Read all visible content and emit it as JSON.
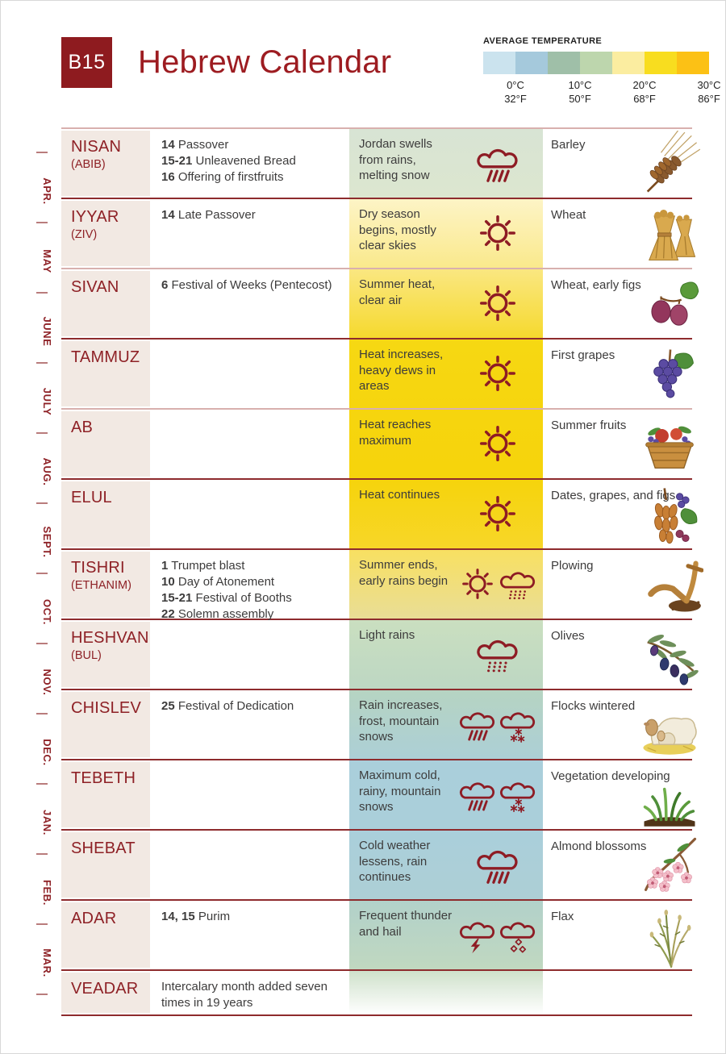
{
  "header": {
    "badge": "B15",
    "title": "Hebrew Calendar"
  },
  "legend": {
    "title": "AVERAGE TEMPERATURE",
    "swatches": [
      "#cbe3ee",
      "#a5c9dc",
      "#9fbfa8",
      "#bdd6ad",
      "#fbeda0",
      "#f8dd1f",
      "#fcc115"
    ],
    "stops": [
      {
        "celsius": "0°C",
        "fahrenheit": "32°F"
      },
      {
        "celsius": "10°C",
        "fahrenheit": "50°F"
      },
      {
        "celsius": "20°C",
        "fahrenheit": "68°F"
      },
      {
        "celsius": "30°C",
        "fahrenheit": "86°F"
      }
    ]
  },
  "gregorian_months": [
    "APR.",
    "MAY",
    "JUNE",
    "JULY",
    "AUG.",
    "SEPT.",
    "OCT.",
    "NOV.",
    "DEC.",
    "JAN.",
    "FEB.",
    "MAR."
  ],
  "months": [
    {
      "name": "NISAN",
      "subname": "(ABIB)",
      "divider": "light",
      "festivals": [
        {
          "num": "14",
          "text": "Passover"
        },
        {
          "num": "15-21",
          "text": "Unleavened Bread"
        },
        {
          "num": "16",
          "text": "Offering of firstfruits"
        }
      ],
      "weather": {
        "text": "Jordan swells from rains, melting snow",
        "icons": [
          "cloud-rain-slash"
        ],
        "bg_top": "#d8e4d4",
        "bg_bottom": "#dce6cf"
      },
      "crops": {
        "text": "Barley",
        "image": "barley"
      }
    },
    {
      "name": "IYYAR",
      "subname": "(ZIV)",
      "divider": "dark",
      "festivals": [
        {
          "num": "14",
          "text": "Late Passover"
        }
      ],
      "weather": {
        "text": "Dry season begins, mostly clear skies",
        "icons": [
          "sun"
        ],
        "bg_top": "#fdf4c6",
        "bg_bottom": "#fae98c"
      },
      "crops": {
        "text": "Wheat",
        "image": "wheat"
      }
    },
    {
      "name": "SIVAN",
      "subname": "",
      "divider": "light",
      "festivals": [
        {
          "num": "6",
          "text": "Festival of Weeks (Pentecost)"
        }
      ],
      "weather": {
        "text": "Summer heat, clear air",
        "icons": [
          "sun"
        ],
        "bg_top": "#fae781",
        "bg_bottom": "#f6d92e"
      },
      "crops": {
        "text": "Wheat, early figs",
        "image": "figs"
      }
    },
    {
      "name": "TAMMUZ",
      "subname": "",
      "divider": "dark",
      "festivals": [],
      "weather": {
        "text": "Heat increases, heavy dews in areas",
        "icons": [
          "sun"
        ],
        "bg_top": "#f6d813",
        "bg_bottom": "#f6d50e"
      },
      "crops": {
        "text": "First grapes",
        "image": "grapes"
      }
    },
    {
      "name": "AB",
      "subname": "",
      "divider": "light",
      "festivals": [],
      "weather": {
        "text": "Heat reaches maximum",
        "icons": [
          "sun"
        ],
        "bg_top": "#f6d50e",
        "bg_bottom": "#f6d40c"
      },
      "crops": {
        "text": "Summer fruits",
        "image": "fruit-basket"
      }
    },
    {
      "name": "ELUL",
      "subname": "",
      "divider": "dark",
      "festivals": [],
      "weather": {
        "text": "Heat continues",
        "icons": [
          "sun"
        ],
        "bg_top": "#f6d40c",
        "bg_bottom": "#f7d628"
      },
      "crops": {
        "text": "Dates, grapes, and figs",
        "image": "dates"
      }
    },
    {
      "name": "TISHRI",
      "subname": "(ETHANIM)",
      "divider": "dark",
      "festivals": [
        {
          "num": "1",
          "text": "Trumpet blast"
        },
        {
          "num": "10",
          "text": "Day of Atonement"
        },
        {
          "num": "15-21",
          "text": "Festival of Booths"
        },
        {
          "num": "22",
          "text": "Solemn assembly"
        }
      ],
      "weather": {
        "text": "Summer ends, early rains begin",
        "icons": [
          "sun",
          "cloud-rain-dots"
        ],
        "bg_top": "#f8e061",
        "bg_bottom": "#e9dd96"
      },
      "crops": {
        "text": "Plowing",
        "image": "plow"
      }
    },
    {
      "name": "HESHVAN",
      "subname": "(BUL)",
      "divider": "dark",
      "festivals": [],
      "weather": {
        "text": "Light rains",
        "icons": [
          "cloud-rain-dots"
        ],
        "bg_top": "#cadfc0",
        "bg_bottom": "#bdd7c3"
      },
      "crops": {
        "text": "Olives",
        "image": "olives"
      }
    },
    {
      "name": "CHISLEV",
      "subname": "",
      "divider": "dark",
      "festivals": [
        {
          "num": "25",
          "text": "Festival of Dedication"
        }
      ],
      "weather": {
        "text": "Rain increases, frost, mountain snows",
        "icons": [
          "cloud-rain-slash",
          "cloud-snow"
        ],
        "bg_top": "#b6d4c2",
        "bg_bottom": "#accfd6"
      },
      "crops": {
        "text": "Flocks wintered",
        "image": "sheep"
      }
    },
    {
      "name": "TEBETH",
      "subname": "",
      "divider": "dark",
      "festivals": [],
      "weather": {
        "text": "Maximum cold, rainy, mountain snows",
        "icons": [
          "cloud-rain-slash",
          "cloud-snow"
        ],
        "bg_top": "#aacfdb",
        "bg_bottom": "#aacfda"
      },
      "crops": {
        "text": "Vegetation developing",
        "image": "sprouts"
      }
    },
    {
      "name": "SHEBAT",
      "subname": "",
      "divider": "dark",
      "festivals": [],
      "weather": {
        "text": "Cold weather lessens, rain continues",
        "icons": [
          "cloud-rain-slash"
        ],
        "bg_top": "#aacfdb",
        "bg_bottom": "#adcfd5"
      },
      "crops": {
        "text": "Almond blossoms",
        "image": "almond-blossoms"
      }
    },
    {
      "name": "ADAR",
      "subname": "",
      "divider": "dark",
      "festivals": [
        {
          "num": "14, 15",
          "text": "Purim"
        }
      ],
      "weather": {
        "text": "Frequent thunder and hail",
        "icons": [
          "cloud-thunder",
          "cloud-hail"
        ],
        "bg_top": "#b2d1ca",
        "bg_bottom": "#c0d8c0"
      },
      "crops": {
        "text": "Flax",
        "image": "flax"
      }
    },
    {
      "name": "VEADAR",
      "subname": "",
      "divider": "dark",
      "short": true,
      "festivals": [
        {
          "num": "",
          "text": "Intercalary month added seven times in 19 years"
        }
      ],
      "weather": {
        "text": "",
        "icons": [],
        "bg_top": "#cfe1cb",
        "bg_bottom": "rgba(236,243,232,0)"
      },
      "crops": null
    }
  ],
  "colors": {
    "accent_dark_red": "#8e1b1f",
    "title_red": "#9d1c21",
    "row_border_dark": "#8e2b2d",
    "row_border_light": "#d8b0ae",
    "month_cell_bg": "#f2e9e3",
    "icon_red": "#8e1c24",
    "body_text": "#3d3c3c"
  }
}
